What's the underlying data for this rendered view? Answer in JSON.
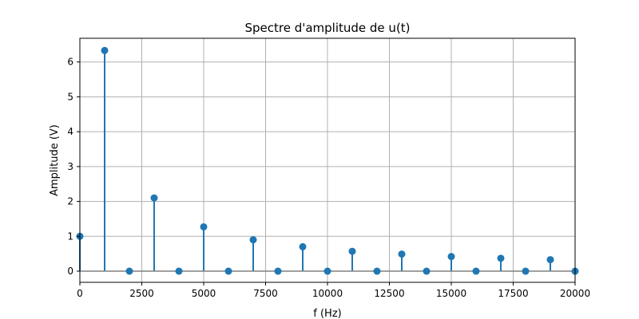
{
  "chart_data": {
    "type": "stem",
    "title": "Spectre d'amplitude de u(t)",
    "xlabel": "f (Hz)",
    "ylabel": "Amplitude (V)",
    "xlim": [
      0,
      20000
    ],
    "ylim": [
      -0.32,
      6.68
    ],
    "grid": true,
    "x_ticks": [
      0,
      2500,
      5000,
      7500,
      10000,
      12500,
      15000,
      17500,
      20000
    ],
    "y_ticks": [
      0,
      1,
      2,
      3,
      4,
      5,
      6
    ],
    "baseline": 0,
    "series": [
      {
        "color": "#1f77b4",
        "x": [
          0,
          1000,
          2000,
          3000,
          4000,
          5000,
          6000,
          7000,
          8000,
          9000,
          10000,
          11000,
          12000,
          13000,
          14000,
          15000,
          16000,
          17000,
          18000,
          19000,
          20000
        ],
        "values": [
          1.0,
          6.33,
          0,
          2.1,
          0,
          1.27,
          0,
          0.9,
          0,
          0.7,
          0,
          0.57,
          0,
          0.49,
          0,
          0.42,
          0,
          0.37,
          0,
          0.33,
          0
        ]
      }
    ]
  }
}
